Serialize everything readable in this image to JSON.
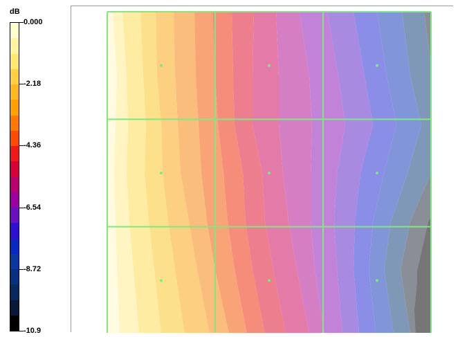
{
  "chart_data": {
    "type": "heatmap",
    "title": "",
    "xlabel": "",
    "ylabel": "",
    "colorbar": {
      "unit": "dB",
      "ticks": [
        "0.000",
        "-2.18",
        "-4.36",
        "-6.54",
        "-8.72",
        "-10.9"
      ],
      "range": [
        -10.9,
        0.0
      ],
      "colors": [
        "#ffffcc",
        "#fff4a0",
        "#ffe870",
        "#ffd040",
        "#ffb820",
        "#ff9f00",
        "#ff7800",
        "#ff4a00",
        "#f01818",
        "#d80038",
        "#b80070",
        "#9c00a0",
        "#6a10c0",
        "#3010d0",
        "#0828c0",
        "#0838a0",
        "#083080",
        "#082860",
        "#081838",
        "#000000"
      ]
    },
    "grid": {
      "rows": 3,
      "cols": 3,
      "line_color": "#80e880"
    },
    "sample_points": [
      {
        "row": 0,
        "col": 0
      },
      {
        "row": 0,
        "col": 1
      },
      {
        "row": 0,
        "col": 2
      },
      {
        "row": 1,
        "col": 0
      },
      {
        "row": 1,
        "col": 1
      },
      {
        "row": 1,
        "col": 2
      },
      {
        "row": 2,
        "col": 0
      },
      {
        "row": 2,
        "col": 1
      },
      {
        "row": 2,
        "col": 2
      }
    ],
    "contour_levels": [
      {
        "level_db": -0.3,
        "fill": "#fffbe0"
      },
      {
        "level_db": -0.8,
        "fill": "#fff5c2"
      },
      {
        "level_db": -1.4,
        "fill": "#fdeca2"
      },
      {
        "level_db": -2.0,
        "fill": "#fde08a"
      },
      {
        "level_db": -2.6,
        "fill": "#fcd080"
      },
      {
        "level_db": -3.2,
        "fill": "#fbbd7c"
      },
      {
        "level_db": -3.8,
        "fill": "#f9a476"
      },
      {
        "level_db": -4.4,
        "fill": "#f68c7a"
      },
      {
        "level_db": -5.0,
        "fill": "#ec7e8e"
      },
      {
        "level_db": -5.6,
        "fill": "#e47aa8"
      },
      {
        "level_db": -6.2,
        "fill": "#d47ec4"
      },
      {
        "level_db": -6.8,
        "fill": "#c282d8"
      },
      {
        "level_db": -7.4,
        "fill": "#a88ae0"
      },
      {
        "level_db": -8.0,
        "fill": "#8a8ee6"
      },
      {
        "level_db": -8.6,
        "fill": "#8096d8"
      },
      {
        "level_db": -9.2,
        "fill": "#7f98b8"
      },
      {
        "level_db": -9.8,
        "fill": "#8a8e96"
      },
      {
        "level_db": -10.4,
        "fill": "#767676"
      }
    ]
  }
}
